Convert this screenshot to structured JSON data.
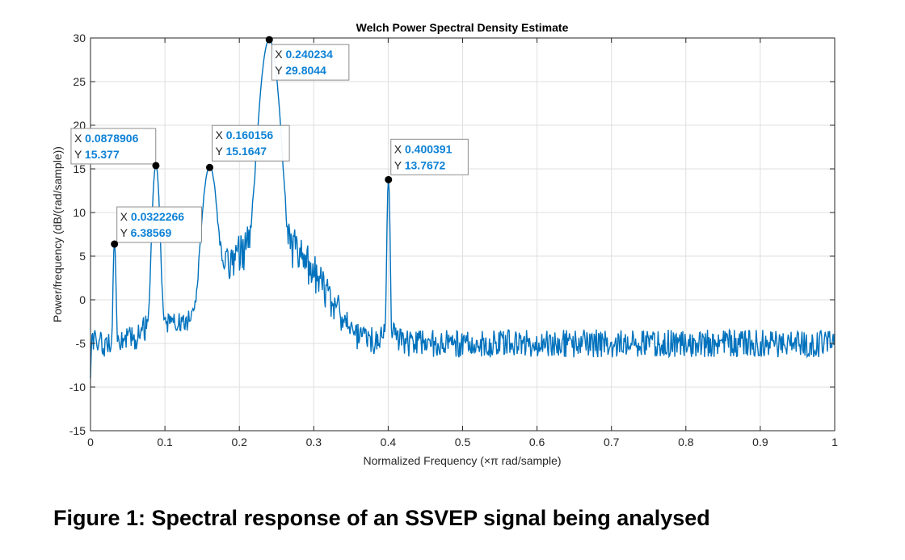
{
  "chart_data": {
    "type": "line",
    "title": "Welch Power Spectral Density Estimate",
    "xlabel": "Normalized Frequency  (×π rad/sample)",
    "ylabel": "Power/frequency (dB/(rad/sample))",
    "xlim": [
      0,
      1
    ],
    "ylim": [
      -15,
      30
    ],
    "xticks": [
      0,
      0.1,
      0.2,
      0.3,
      0.4,
      0.5,
      0.6,
      0.7,
      0.8,
      0.9,
      1
    ],
    "xtick_labels": [
      "0",
      "0.1",
      "0.2",
      "0.3",
      "0.4",
      "0.5",
      "0.6",
      "0.7",
      "0.8",
      "0.9",
      "1"
    ],
    "yticks": [
      -15,
      -10,
      -5,
      0,
      5,
      10,
      15,
      20,
      25,
      30
    ],
    "ytick_labels": [
      "-15",
      "-10",
      "-5",
      "0",
      "5",
      "10",
      "15",
      "20",
      "25",
      "30"
    ],
    "grid": true,
    "line_color": "#0072BD",
    "baseline_db": -5,
    "noise_db": 1.6,
    "peaks": [
      {
        "x": 0.0322266,
        "y": 6.38569,
        "width": 0.0012
      },
      {
        "x": 0.0878906,
        "y": 15.377,
        "width": 0.003
      },
      {
        "x": 0.160156,
        "y": 15.1647,
        "width": 0.006
      },
      {
        "x": 0.240234,
        "y": 29.8044,
        "width": 0.007
      },
      {
        "x": 0.400391,
        "y": 13.7672,
        "width": 0.0012
      }
    ],
    "datatips": [
      {
        "x_label": "X",
        "x_value": "0.0322266",
        "y_label": "Y",
        "y_value": "6.38569",
        "x": 0.0322266,
        "y": 6.38569
      },
      {
        "x_label": "X",
        "x_value": "0.0878906",
        "y_label": "Y",
        "y_value": "15.377",
        "x": 0.0878906,
        "y": 15.377
      },
      {
        "x_label": "X",
        "x_value": "0.160156",
        "y_label": "Y",
        "y_value": "15.1647",
        "x": 0.160156,
        "y": 15.1647
      },
      {
        "x_label": "X",
        "x_value": "0.240234",
        "y_label": "Y",
        "y_value": "29.8044",
        "x": 0.240234,
        "y": 29.8044
      },
      {
        "x_label": "X",
        "x_value": "0.400391",
        "y_label": "Y",
        "y_value": "13.7672",
        "x": 0.400391,
        "y": 13.7672
      }
    ]
  },
  "caption": "Figure 1: Spectral response of an SSVEP signal being analysed"
}
